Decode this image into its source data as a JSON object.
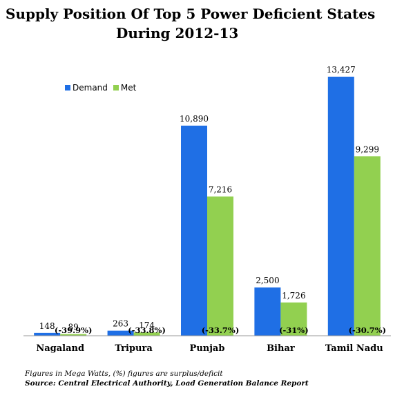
{
  "title_line1": "Supply Position Of Top 5 Power Deficient States",
  "title_line2": "During 2012-13",
  "colors": {
    "demand": "#1f6fe5",
    "met": "#92d050"
  },
  "footnote": "Figures in Mega Watts, (%) figures are surplus/deficit",
  "source": "Source: Central Electrical Authority, Load Generation Balance Report",
  "chart_data": {
    "type": "bar",
    "title": "Supply Position Of Top 5 Power Deficient States During 2012-13",
    "categories": [
      "Nagaland",
      "Tripura",
      "Punjab",
      "Bihar",
      "Tamil Nadu"
    ],
    "series": [
      {
        "name": "Demand",
        "values": [
          148,
          263,
          10890,
          2500,
          13427
        ],
        "labels": [
          "148",
          "263",
          "10,890",
          "2,500",
          "13,427"
        ]
      },
      {
        "name": "Met",
        "values": [
          89,
          174,
          7216,
          1726,
          9299
        ],
        "labels": [
          "89",
          "174",
          "7,216",
          "1,726",
          "9,299"
        ]
      }
    ],
    "deficit_labels": [
      "(-39.9%)",
      "(-33.8%)",
      "(-33.7%)",
      "(-31%)",
      "(-30.7%)"
    ],
    "ylim": [
      0,
      14000
    ],
    "grid": false,
    "legend": "top-left"
  }
}
